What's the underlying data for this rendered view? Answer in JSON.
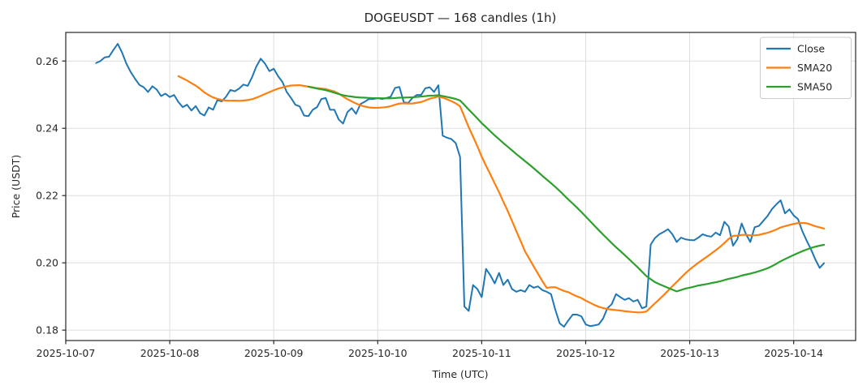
{
  "chart_data": {
    "type": "line",
    "title": "DOGEUSDT — 168 candles (1h)",
    "xlabel": "Time (UTC)",
    "ylabel": "Price (USDT)",
    "candles": 168,
    "interval": "1h",
    "start_time_utc": "2025-10-07 07:00",
    "end_time_utc": "2025-10-14 06:00",
    "grid": true,
    "background_color": "#ffffff",
    "grid_color": "#dedede",
    "spine_color": "#262626",
    "xlim_hours": [
      0,
      182.3
    ],
    "ylim": [
      0.1769,
      0.2685
    ],
    "x_ticks": [
      {
        "hours": 0,
        "label": "2025-10-07"
      },
      {
        "hours": 24,
        "label": "2025-10-08"
      },
      {
        "hours": 48,
        "label": "2025-10-09"
      },
      {
        "hours": 72,
        "label": "2025-10-10"
      },
      {
        "hours": 96,
        "label": "2025-10-11"
      },
      {
        "hours": 120,
        "label": "2025-10-12"
      },
      {
        "hours": 144,
        "label": "2025-10-13"
      },
      {
        "hours": 168,
        "label": "2025-10-14"
      }
    ],
    "y_ticks": [
      {
        "value": 0.18,
        "label": "0.18"
      },
      {
        "value": 0.2,
        "label": "0.20"
      },
      {
        "value": 0.22,
        "label": "0.22"
      },
      {
        "value": 0.24,
        "label": "0.24"
      },
      {
        "value": 0.26,
        "label": "0.26"
      }
    ],
    "legend": {
      "position": "upper right"
    },
    "series": [
      {
        "name": "Close",
        "color": "#1f77b4",
        "start_hour": 7,
        "values": [
          0.2594,
          0.26,
          0.2611,
          0.2613,
          0.2633,
          0.2651,
          0.2625,
          0.2592,
          0.2567,
          0.2547,
          0.2529,
          0.2522,
          0.2508,
          0.2525,
          0.2515,
          0.2496,
          0.2503,
          0.2493,
          0.2499,
          0.2478,
          0.2463,
          0.247,
          0.2453,
          0.2466,
          0.2445,
          0.2438,
          0.2462,
          0.2455,
          0.2484,
          0.248,
          0.2494,
          0.2514,
          0.251,
          0.2518,
          0.253,
          0.2526,
          0.2552,
          0.2584,
          0.2607,
          0.2592,
          0.257,
          0.2577,
          0.2555,
          0.2538,
          0.2508,
          0.249,
          0.247,
          0.2465,
          0.2438,
          0.2436,
          0.2455,
          0.2463,
          0.2487,
          0.249,
          0.2455,
          0.2455,
          0.2426,
          0.2414,
          0.2448,
          0.246,
          0.2443,
          0.2472,
          0.2479,
          0.2487,
          0.2487,
          0.249,
          0.2487,
          0.249,
          0.2494,
          0.252,
          0.2523,
          0.2478,
          0.2475,
          0.249,
          0.2499,
          0.2499,
          0.2519,
          0.2522,
          0.2508,
          0.2528,
          0.2378,
          0.2372,
          0.2368,
          0.2356,
          0.2315,
          0.187,
          0.1857,
          0.1934,
          0.1922,
          0.1898,
          0.1982,
          0.1963,
          0.1939,
          0.197,
          0.1934,
          0.195,
          0.1922,
          0.1914,
          0.1919,
          0.1914,
          0.1934,
          0.1926,
          0.193,
          0.1919,
          0.1914,
          0.1907,
          0.186,
          0.182,
          0.181,
          0.1829,
          0.1846,
          0.1846,
          0.1841,
          0.1817,
          0.1812,
          0.1814,
          0.1817,
          0.1834,
          0.1865,
          0.1877,
          0.1907,
          0.1898,
          0.189,
          0.1895,
          0.1885,
          0.189,
          0.1865,
          0.187,
          0.2054,
          0.2074,
          0.2085,
          0.2092,
          0.21,
          0.2085,
          0.2062,
          0.2075,
          0.207,
          0.2068,
          0.2067,
          0.2075,
          0.2085,
          0.208,
          0.2078,
          0.209,
          0.2082,
          0.2122,
          0.2108,
          0.2051,
          0.207,
          0.2117,
          0.2085,
          0.2062,
          0.2106,
          0.211,
          0.2125,
          0.214,
          0.216,
          0.2174,
          0.2186,
          0.2147,
          0.2159,
          0.2141,
          0.213,
          0.2094,
          0.2066,
          0.204,
          0.201,
          0.1985,
          0.1999
        ]
      },
      {
        "name": "SMA20",
        "color": "#ff7f0e",
        "derived": "sma",
        "window": 20,
        "of": "Close"
      },
      {
        "name": "SMA50",
        "color": "#2ca02c",
        "derived": "sma",
        "window": 50,
        "of": "Close"
      }
    ]
  }
}
